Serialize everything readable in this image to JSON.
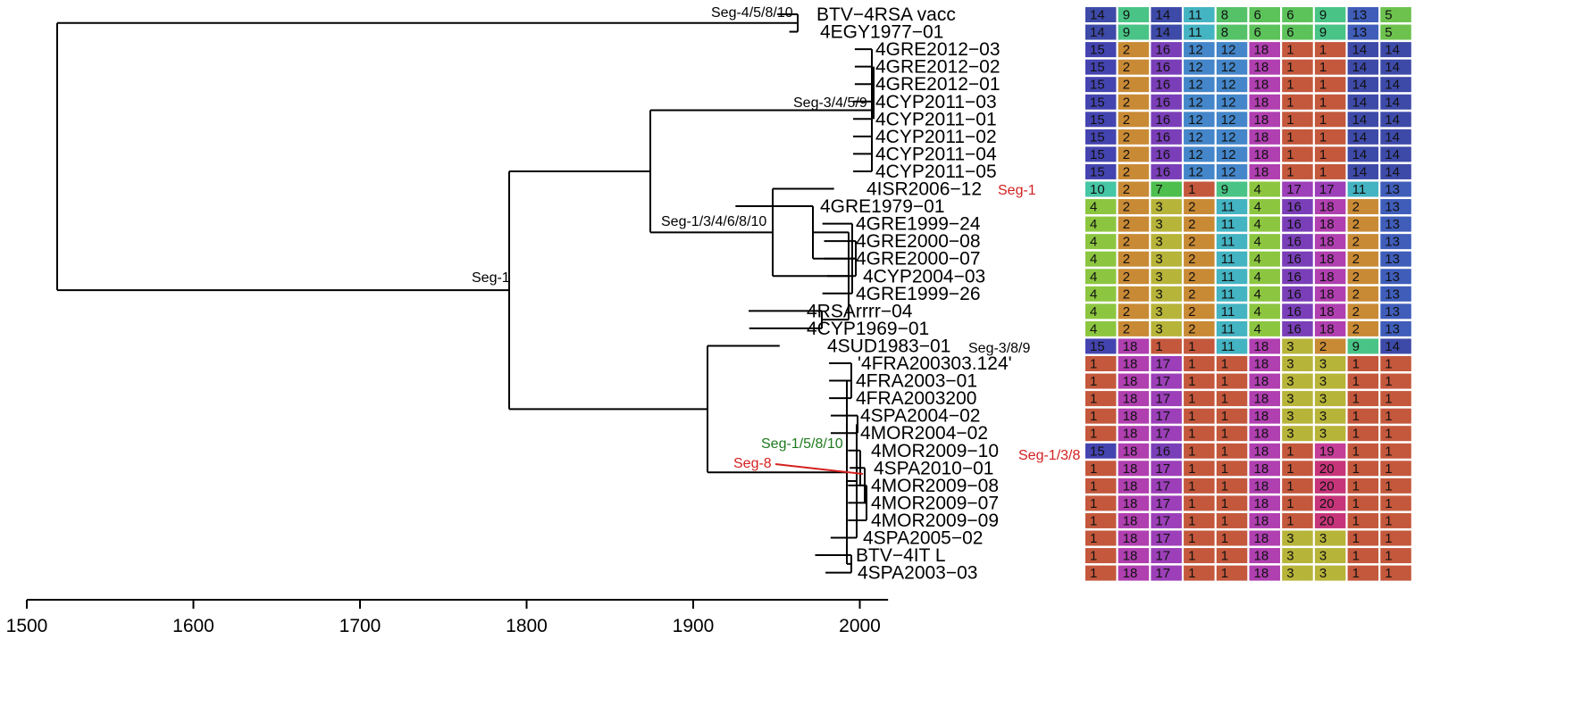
{
  "tree": {
    "tips": [
      {
        "label": "BTV−4RSA vacc",
        "year": 1960
      },
      {
        "label": "4EGY1977−01",
        "year": 1977
      },
      {
        "label": "4GRE2012−03",
        "year": 2012
      },
      {
        "label": "4GRE2012−02",
        "year": 2012
      },
      {
        "label": "4GRE2012−01",
        "year": 2012
      },
      {
        "label": "4CYP2011−03",
        "year": 2011
      },
      {
        "label": "4CYP2011−01",
        "year": 2011
      },
      {
        "label": "4CYP2011−02",
        "year": 2011
      },
      {
        "label": "4CYP2011−04",
        "year": 2011
      },
      {
        "label": "4CYP2011−05",
        "year": 2011
      },
      {
        "label": "4ISR2006−12",
        "year": 2006
      },
      {
        "label": "4GRE1979−01",
        "year": 1979
      },
      {
        "label": "4GRE1999−24",
        "year": 1999
      },
      {
        "label": "4GRE2000−08",
        "year": 2000
      },
      {
        "label": "4GRE2000−07",
        "year": 2000
      },
      {
        "label": "4CYP2004−03",
        "year": 2004
      },
      {
        "label": "4GRE1999−26",
        "year": 1999
      },
      {
        "label": "4RSArrrr−04",
        "year": 1974
      },
      {
        "label": "4CYP1969−01",
        "year": 1969
      },
      {
        "label": "4SUD1983−01",
        "year": 1983
      },
      {
        "label": "'4FRA200303.124'",
        "year": 2003
      },
      {
        "label": "4FRA2003−01",
        "year": 2003
      },
      {
        "label": "4FRA2003200",
        "year": 2003
      },
      {
        "label": "4SPA2004−02",
        "year": 2004
      },
      {
        "label": "4MOR2004−02",
        "year": 2004
      },
      {
        "label": "4MOR2009−10",
        "year": 2009
      },
      {
        "label": "4SPA2010−01",
        "year": 2010
      },
      {
        "label": "4MOR2009−08",
        "year": 2009
      },
      {
        "label": "4MOR2009−07",
        "year": 2009
      },
      {
        "label": "4MOR2009−09",
        "year": 2009
      },
      {
        "label": "4SPA2005−02",
        "year": 2005
      },
      {
        "label": "BTV−4IT L",
        "year": 2000
      },
      {
        "label": "4SPA2003−03",
        "year": 2003
      }
    ],
    "annotations": [
      {
        "text": "Seg-4/5/8/10",
        "color": "#000000"
      },
      {
        "text": "Seg-3/4/5/9",
        "color": "#000000"
      },
      {
        "text": "Seg-1",
        "color": "#d42020"
      },
      {
        "text": "Seg-1/3/4/6/8/10",
        "color": "#000000"
      },
      {
        "text": "Seg-1",
        "color": "#000000"
      },
      {
        "text": "Seg-3/8/9",
        "color": "#000000"
      },
      {
        "text": "Seg-1/5/8/10",
        "color": "#1f7a1f"
      },
      {
        "text": "Seg-1/3/8",
        "color": "#d42020"
      },
      {
        "text": "Seg-8",
        "color": "#d42020"
      }
    ]
  },
  "axis": {
    "min": 1500,
    "max": 2010,
    "ticks": [
      "1500",
      "1600",
      "1700",
      "1800",
      "1900",
      "2000"
    ]
  },
  "segment_matrix": [
    [
      14,
      9,
      14,
      11,
      8,
      6,
      6,
      9,
      13,
      5
    ],
    [
      14,
      9,
      14,
      11,
      8,
      6,
      6,
      9,
      13,
      5
    ],
    [
      15,
      2,
      16,
      12,
      12,
      18,
      1,
      1,
      14,
      14
    ],
    [
      15,
      2,
      16,
      12,
      12,
      18,
      1,
      1,
      14,
      14
    ],
    [
      15,
      2,
      16,
      12,
      12,
      18,
      1,
      1,
      14,
      14
    ],
    [
      15,
      2,
      16,
      12,
      12,
      18,
      1,
      1,
      14,
      14
    ],
    [
      15,
      2,
      16,
      12,
      12,
      18,
      1,
      1,
      14,
      14
    ],
    [
      15,
      2,
      16,
      12,
      12,
      18,
      1,
      1,
      14,
      14
    ],
    [
      15,
      2,
      16,
      12,
      12,
      18,
      1,
      1,
      14,
      14
    ],
    [
      15,
      2,
      16,
      12,
      12,
      18,
      1,
      1,
      14,
      14
    ],
    [
      10,
      2,
      7,
      1,
      9,
      4,
      17,
      17,
      11,
      13
    ],
    [
      4,
      2,
      3,
      2,
      11,
      4,
      16,
      18,
      2,
      13
    ],
    [
      4,
      2,
      3,
      2,
      11,
      4,
      16,
      18,
      2,
      13
    ],
    [
      4,
      2,
      3,
      2,
      11,
      4,
      16,
      18,
      2,
      13
    ],
    [
      4,
      2,
      3,
      2,
      11,
      4,
      16,
      18,
      2,
      13
    ],
    [
      4,
      2,
      3,
      2,
      11,
      4,
      16,
      18,
      2,
      13
    ],
    [
      4,
      2,
      3,
      2,
      11,
      4,
      16,
      18,
      2,
      13
    ],
    [
      4,
      2,
      3,
      2,
      11,
      4,
      16,
      18,
      2,
      13
    ],
    [
      4,
      2,
      3,
      2,
      11,
      4,
      16,
      18,
      2,
      13
    ],
    [
      15,
      18,
      1,
      1,
      11,
      18,
      3,
      2,
      9,
      14
    ],
    [
      1,
      18,
      17,
      1,
      1,
      18,
      3,
      3,
      1,
      1
    ],
    [
      1,
      18,
      17,
      1,
      1,
      18,
      3,
      3,
      1,
      1
    ],
    [
      1,
      18,
      17,
      1,
      1,
      18,
      3,
      3,
      1,
      1
    ],
    [
      1,
      18,
      17,
      1,
      1,
      18,
      3,
      3,
      1,
      1
    ],
    [
      1,
      18,
      17,
      1,
      1,
      18,
      3,
      3,
      1,
      1
    ],
    [
      15,
      18,
      16,
      1,
      1,
      18,
      1,
      19,
      1,
      1
    ],
    [
      1,
      18,
      17,
      1,
      1,
      18,
      1,
      20,
      1,
      1
    ],
    [
      1,
      18,
      17,
      1,
      1,
      18,
      1,
      20,
      1,
      1
    ],
    [
      1,
      18,
      17,
      1,
      1,
      18,
      1,
      20,
      1,
      1
    ],
    [
      1,
      18,
      17,
      1,
      1,
      18,
      1,
      20,
      1,
      1
    ],
    [
      1,
      18,
      17,
      1,
      1,
      18,
      3,
      3,
      1,
      1
    ],
    [
      1,
      18,
      17,
      1,
      1,
      18,
      3,
      3,
      1,
      1
    ],
    [
      1,
      18,
      17,
      1,
      1,
      18,
      3,
      3,
      1,
      1
    ]
  ],
  "value_colors": {
    "1": "#c4583c",
    "2": "#c98a35",
    "3": "#b7b43a",
    "4": "#8cc640",
    "5": "#6dc24e",
    "6": "#5cc35a",
    "7": "#4ebf4e",
    "8": "#55c268",
    "9": "#49c486",
    "10": "#45c6a4",
    "11": "#44b3c2",
    "12": "#4486c9",
    "13": "#3f5db9",
    "14": "#3e4aa8",
    "15": "#4444b0",
    "16": "#7a3fb8",
    "17": "#9c3fb8",
    "18": "#b03fb0",
    "19": "#c43d97",
    "20": "#c6357a"
  },
  "colors": {
    "tree_line": "#000000",
    "highlight": "#d42020"
  }
}
